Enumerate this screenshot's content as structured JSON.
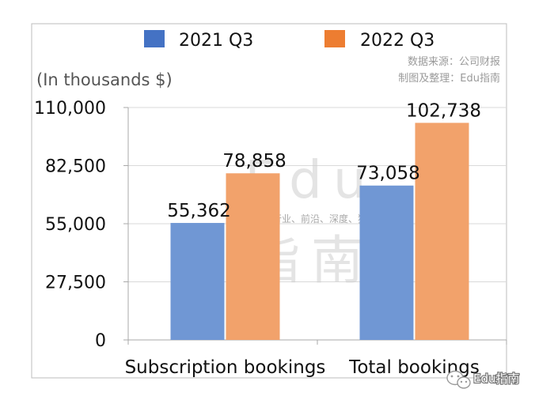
{
  "chart_data": {
    "type": "bar",
    "title": "",
    "unit_label": "(In thousands $)",
    "categories": [
      "Subscription bookings",
      "Total bookings"
    ],
    "series": [
      {
        "name": "2021 Q3",
        "color": "#7097d4",
        "values": [
          55362,
          73058
        ],
        "labels": [
          "55,362",
          "73,058"
        ]
      },
      {
        "name": "2022 Q3",
        "color": "#f2a26b",
        "values": [
          78858,
          102738
        ],
        "labels": [
          "78,858",
          "102,738"
        ]
      }
    ],
    "legend_swatch_colors": [
      "#4472c4",
      "#ed7d31"
    ],
    "ylim": [
      0,
      110000
    ],
    "yticks": [
      0,
      27500,
      55000,
      82500,
      110000
    ],
    "ytick_labels": [
      "0",
      "27,500",
      "55,000",
      "82,500",
      "110,000"
    ],
    "grid": true,
    "legend_position": "top"
  },
  "source": {
    "line1": "数据来源：公司财报",
    "line2": "制图及整理：Edu指南"
  },
  "watermark": {
    "big_top": "Edu",
    "tagline": "教育行业、前沿、深度、独家",
    "big_bottom": "指南"
  },
  "brand": {
    "icon": "wechat-icon",
    "text": "Edu指南"
  }
}
